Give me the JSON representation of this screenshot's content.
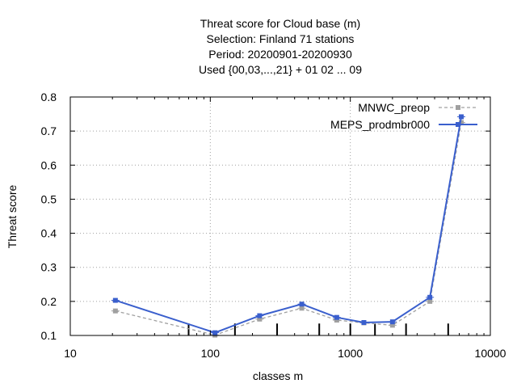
{
  "chart_data": {
    "type": "line",
    "title_lines": [
      "Threat score  for Cloud base (m)",
      "Selection: Finland     71 stations",
      "Period: 20200901-20200930",
      "Used {00,03,...,21} + 01 02 ... 09"
    ],
    "xlabel": "classes m",
    "ylabel": "Threat score",
    "x_scale": "log",
    "xlim": [
      10,
      10000
    ],
    "ylim": [
      0.1,
      0.8
    ],
    "x_ticks": [
      10,
      100,
      1000,
      10000
    ],
    "x_tick_labels": [
      "10",
      "100",
      "1000",
      "10000"
    ],
    "y_ticks": [
      0.1,
      0.2,
      0.3,
      0.4,
      0.5,
      0.6,
      0.7,
      0.8
    ],
    "y_tick_labels": [
      "0.1",
      "0.2",
      "0.3",
      "0.4",
      "0.5",
      "0.6",
      "0.7",
      "0.8"
    ],
    "grid": true,
    "legend_position": "top-right",
    "series": [
      {
        "name": "MNWC_preop",
        "color": "#a0a0a0",
        "dash": true,
        "x": [
          21,
          108,
          225,
          450,
          800,
          1250,
          2000,
          3700,
          6200
        ],
        "values": [
          0.172,
          0.101,
          0.148,
          0.18,
          0.145,
          0.137,
          0.13,
          0.2,
          0.725
        ]
      },
      {
        "name": "MEPS_prodmbr000",
        "color": "#3a5fcd",
        "dash": false,
        "x": [
          21,
          108,
          225,
          450,
          800,
          1250,
          2000,
          3700,
          6200
        ],
        "values": [
          0.203,
          0.108,
          0.158,
          0.192,
          0.153,
          0.138,
          0.14,
          0.212,
          0.742
        ]
      }
    ],
    "threshold_markers": {
      "color": "#000000",
      "x": [
        70,
        150,
        300,
        600,
        1000,
        1500,
        2500,
        5000
      ],
      "heights": [
        0.135,
        0.135,
        0.135,
        0.135,
        0.135,
        0.135,
        0.135,
        0.135
      ]
    }
  }
}
